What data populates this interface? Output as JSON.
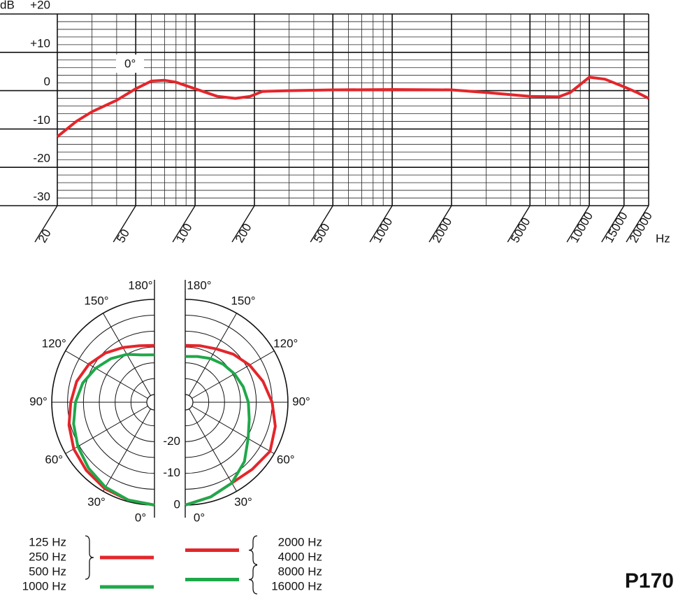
{
  "chart_data": [
    {
      "type": "line",
      "x_scale": "log",
      "x_label": "Hz",
      "y_label": "dB",
      "grid": true,
      "xlim": [
        20,
        20000
      ],
      "xticks": [
        20,
        50,
        100,
        200,
        500,
        1000,
        2000,
        5000,
        10000,
        15000,
        20000
      ],
      "ylim": [
        -30,
        20
      ],
      "yticks": [
        -30,
        -20,
        -10,
        0,
        {
          "value": 10,
          "label": "+10"
        },
        {
          "value": 20,
          "label": "+20"
        }
      ],
      "series": [
        {
          "name": "0°",
          "color": "#e3262b",
          "x": [
            20,
            25,
            30,
            40,
            50,
            60,
            70,
            80,
            100,
            130,
            160,
            190,
            220,
            300,
            500,
            1000,
            2000,
            3000,
            5000,
            7000,
            8000,
            10000,
            12000,
            15000,
            17500,
            20000
          ],
          "values": [
            -12,
            -8,
            -5.5,
            -2.5,
            0.5,
            2.5,
            2.7,
            2.2,
            0.5,
            -1.5,
            -2,
            -1.5,
            -0.2,
            0,
            0.2,
            0.3,
            0.2,
            -0.5,
            -1.5,
            -1.6,
            -0.5,
            3.5,
            3,
            1,
            -0.5,
            -2
          ]
        }
      ]
    },
    {
      "type": "polar",
      "rlim": [
        -30,
        0
      ],
      "rticks": [
        -20,
        -10,
        0
      ],
      "angle_ticks": [
        {
          "value": 0,
          "label": "0°"
        },
        {
          "value": 30,
          "label": "30°"
        },
        {
          "value": 60,
          "label": "60°"
        },
        {
          "value": 90,
          "label": "90°"
        },
        {
          "value": 120,
          "label": "120°"
        },
        {
          "value": 150,
          "label": "150°"
        },
        {
          "value": 180,
          "label": "180°"
        }
      ],
      "series": [
        {
          "name": [
            "125 Hz",
            "250 Hz",
            "500 Hz"
          ],
          "side": "left",
          "color": "#e3262b",
          "angles": [
            0,
            15,
            30,
            45,
            60,
            75,
            90,
            105,
            120,
            135,
            150,
            165,
            180
          ],
          "values": [
            0,
            -0.5,
            -1,
            -2,
            -3,
            -4.5,
            -6,
            -7,
            -8.5,
            -10.5,
            -12.5,
            -14,
            -14.5
          ]
        },
        {
          "name": [
            "1000 Hz"
          ],
          "side": "left",
          "color": "#1fa84a",
          "angles": [
            0,
            15,
            30,
            45,
            60,
            75,
            90,
            105,
            120,
            135,
            150,
            165,
            180
          ],
          "values": [
            0,
            -0.5,
            -1.5,
            -3,
            -4.5,
            -6,
            -7.5,
            -9,
            -11,
            -13,
            -15,
            -17,
            -17.5
          ]
        },
        {
          "name": [
            "2000 Hz",
            "4000 Hz"
          ],
          "side": "right",
          "color": "#e3262b",
          "angles": [
            0,
            15,
            30,
            45,
            60,
            75,
            90,
            105,
            120,
            135,
            150,
            165,
            180
          ],
          "values": [
            0,
            -1.5,
            -3,
            -2.5,
            -1.5,
            -3,
            -5,
            -7,
            -9,
            -11,
            -13,
            -14,
            -14.5
          ]
        },
        {
          "name": [
            "8000 Hz",
            "16000 Hz"
          ],
          "side": "right",
          "color": "#1fa84a",
          "angles": [
            0,
            15,
            30,
            45,
            60,
            75,
            90,
            105,
            120,
            135,
            150,
            165,
            180
          ],
          "values": [
            0,
            -1.5,
            -3,
            -6,
            -9.5,
            -11.5,
            -12.5,
            -13.5,
            -14.5,
            -15.5,
            -16.5,
            -17.5,
            -18
          ]
        }
      ]
    }
  ],
  "model": "P170"
}
